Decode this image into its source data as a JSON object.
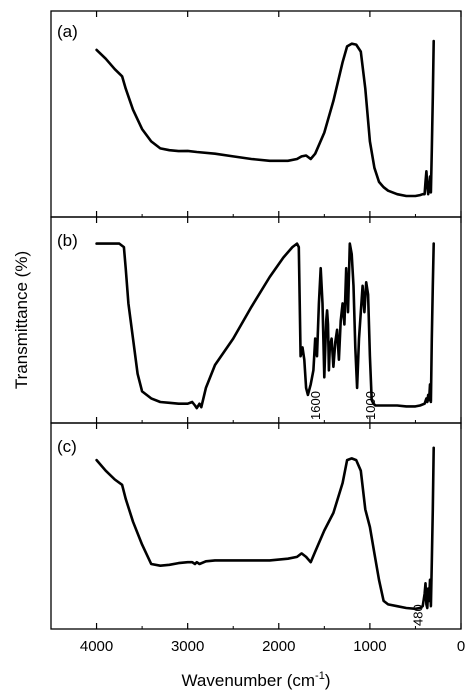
{
  "chart_data": {
    "type": "line",
    "xlabel": "Wavenumber (cm",
    "xlabel_superscript": "-1",
    "xlabel_close": ")",
    "ylabel": "Transmittance (%)",
    "x_reversed": true,
    "xlim": [
      4500,
      0
    ],
    "x_ticks": [
      "4000",
      "3000",
      "2000",
      "1000",
      "0"
    ],
    "x_tick_values": [
      4000,
      3000,
      2000,
      1000,
      0
    ],
    "y_ticks_labeled": false,
    "grid": false,
    "panels": [
      {
        "label": "(a)",
        "ylim": [
          0,
          100
        ],
        "series": [
          {
            "x": [
              4000,
              3900,
              3800,
              3720,
              3680,
              3600,
              3500,
              3400,
              3300,
              3200,
              3100,
              3000,
              2900,
              2700,
              2500,
              2300,
              2100,
              1900,
              1800,
              1750,
              1700,
              1650,
              1600,
              1500,
              1400,
              1300,
              1250,
              1200,
              1150,
              1100,
              1050,
              1000,
              950,
              900,
              850,
              800,
              700,
              600,
              500,
              450,
              420,
              400,
              390,
              380,
              370,
              360,
              350,
              340,
              330,
              320,
              310,
              300
            ],
            "y": [
              87,
              82,
              76,
              72,
              65,
              53,
              42,
              35,
              31,
              30,
              29.5,
              29.6,
              29,
              28,
              26.5,
              25,
              24,
              24,
              25,
              26.5,
              27,
              25,
              28,
              40,
              58,
              80,
              89,
              90.5,
              90,
              86,
              65,
              35,
              20,
              12,
              9,
              7,
              5,
              4,
              4,
              4.5,
              5,
              5,
              12,
              18,
              10,
              5,
              8,
              15,
              6,
              30,
              60,
              92
            ]
          }
        ]
      },
      {
        "label": "(b)",
        "ylim": [
          0,
          100
        ],
        "annotations": [
          {
            "text": "1600",
            "x": 1600
          },
          {
            "text": "1000",
            "x": 1000
          }
        ],
        "series": [
          {
            "x": [
              4000,
              3850,
              3750,
              3700,
              3680,
              3650,
              3600,
              3550,
              3500,
              3400,
              3300,
              3200,
              3100,
              3000,
              2950,
              2920,
              2900,
              2870,
              2850,
              2800,
              2700,
              2500,
              2300,
              2100,
              1950,
              1850,
              1800,
              1780,
              1760,
              1740,
              1720,
              1700,
              1680,
              1650,
              1620,
              1600,
              1580,
              1560,
              1540,
              1520,
              1500,
              1480,
              1470,
              1460,
              1450,
              1440,
              1420,
              1400,
              1380,
              1360,
              1340,
              1320,
              1300,
              1280,
              1260,
              1240,
              1220,
              1200,
              1180,
              1160,
              1140,
              1120,
              1100,
              1080,
              1060,
              1040,
              1020,
              1000,
              980,
              960,
              940,
              900,
              800,
              700,
              600,
              500,
              450,
              400,
              380,
              370,
              360,
              350,
              340,
              330,
              320,
              310,
              300
            ],
            "y": [
              94,
              94,
              94,
              92,
              80,
              60,
              40,
              20,
              10,
              6,
              4,
              3.5,
              3,
              3,
              4,
              2,
              0.5,
              3,
              1,
              12,
              25,
              40,
              58,
              75,
              86,
              92,
              94,
              92,
              30,
              35,
              28,
              12,
              8,
              14,
              22,
              40,
              30,
              60,
              80,
              60,
              18,
              50,
              56,
              48,
              22,
              35,
              40,
              24,
              38,
              45,
              28,
              50,
              60,
              48,
              80,
              55,
              94,
              88,
              70,
              35,
              12,
              40,
              55,
              70,
              55,
              72,
              65,
              30,
              5,
              3,
              2,
              2,
              2,
              2,
              1.5,
              1.5,
              2,
              3,
              6,
              4,
              8,
              5,
              14,
              4,
              40,
              70,
              94
            ]
          }
        ]
      },
      {
        "label": "(c)",
        "ylim": [
          0,
          100
        ],
        "annotations": [
          {
            "text": "480",
            "x": 480
          }
        ],
        "series": [
          {
            "x": [
              4000,
              3900,
              3800,
              3720,
              3680,
              3600,
              3500,
              3400,
              3300,
              3200,
              3100,
              3000,
              2950,
              2920,
              2900,
              2870,
              2800,
              2700,
              2500,
              2300,
              2100,
              1900,
              1800,
              1750,
              1700,
              1650,
              1600,
              1500,
              1400,
              1300,
              1250,
              1200,
              1150,
              1100,
              1050,
              1000,
              950,
              900,
              850,
              800,
              700,
              600,
              500,
              450,
              420,
              400,
              390,
              380,
              370,
              360,
              350,
              340,
              330,
              320,
              310,
              300
            ],
            "y": [
              88,
              82,
              77,
              74,
              66,
              53,
              40,
              29,
              28,
              28.5,
              29.5,
              30,
              30,
              29,
              30,
              29,
              30.5,
              31,
              31,
              31,
              31,
              32,
              33,
              35,
              33,
              30,
              36,
              48,
              58,
              75,
              88,
              89,
              88,
              82,
              60,
              50,
              35,
              20,
              8,
              6,
              5,
              4,
              3.5,
              4,
              5,
              12,
              18,
              6,
              4,
              15,
              8,
              20,
              5,
              30,
              60,
              95
            ]
          }
        ]
      }
    ]
  }
}
